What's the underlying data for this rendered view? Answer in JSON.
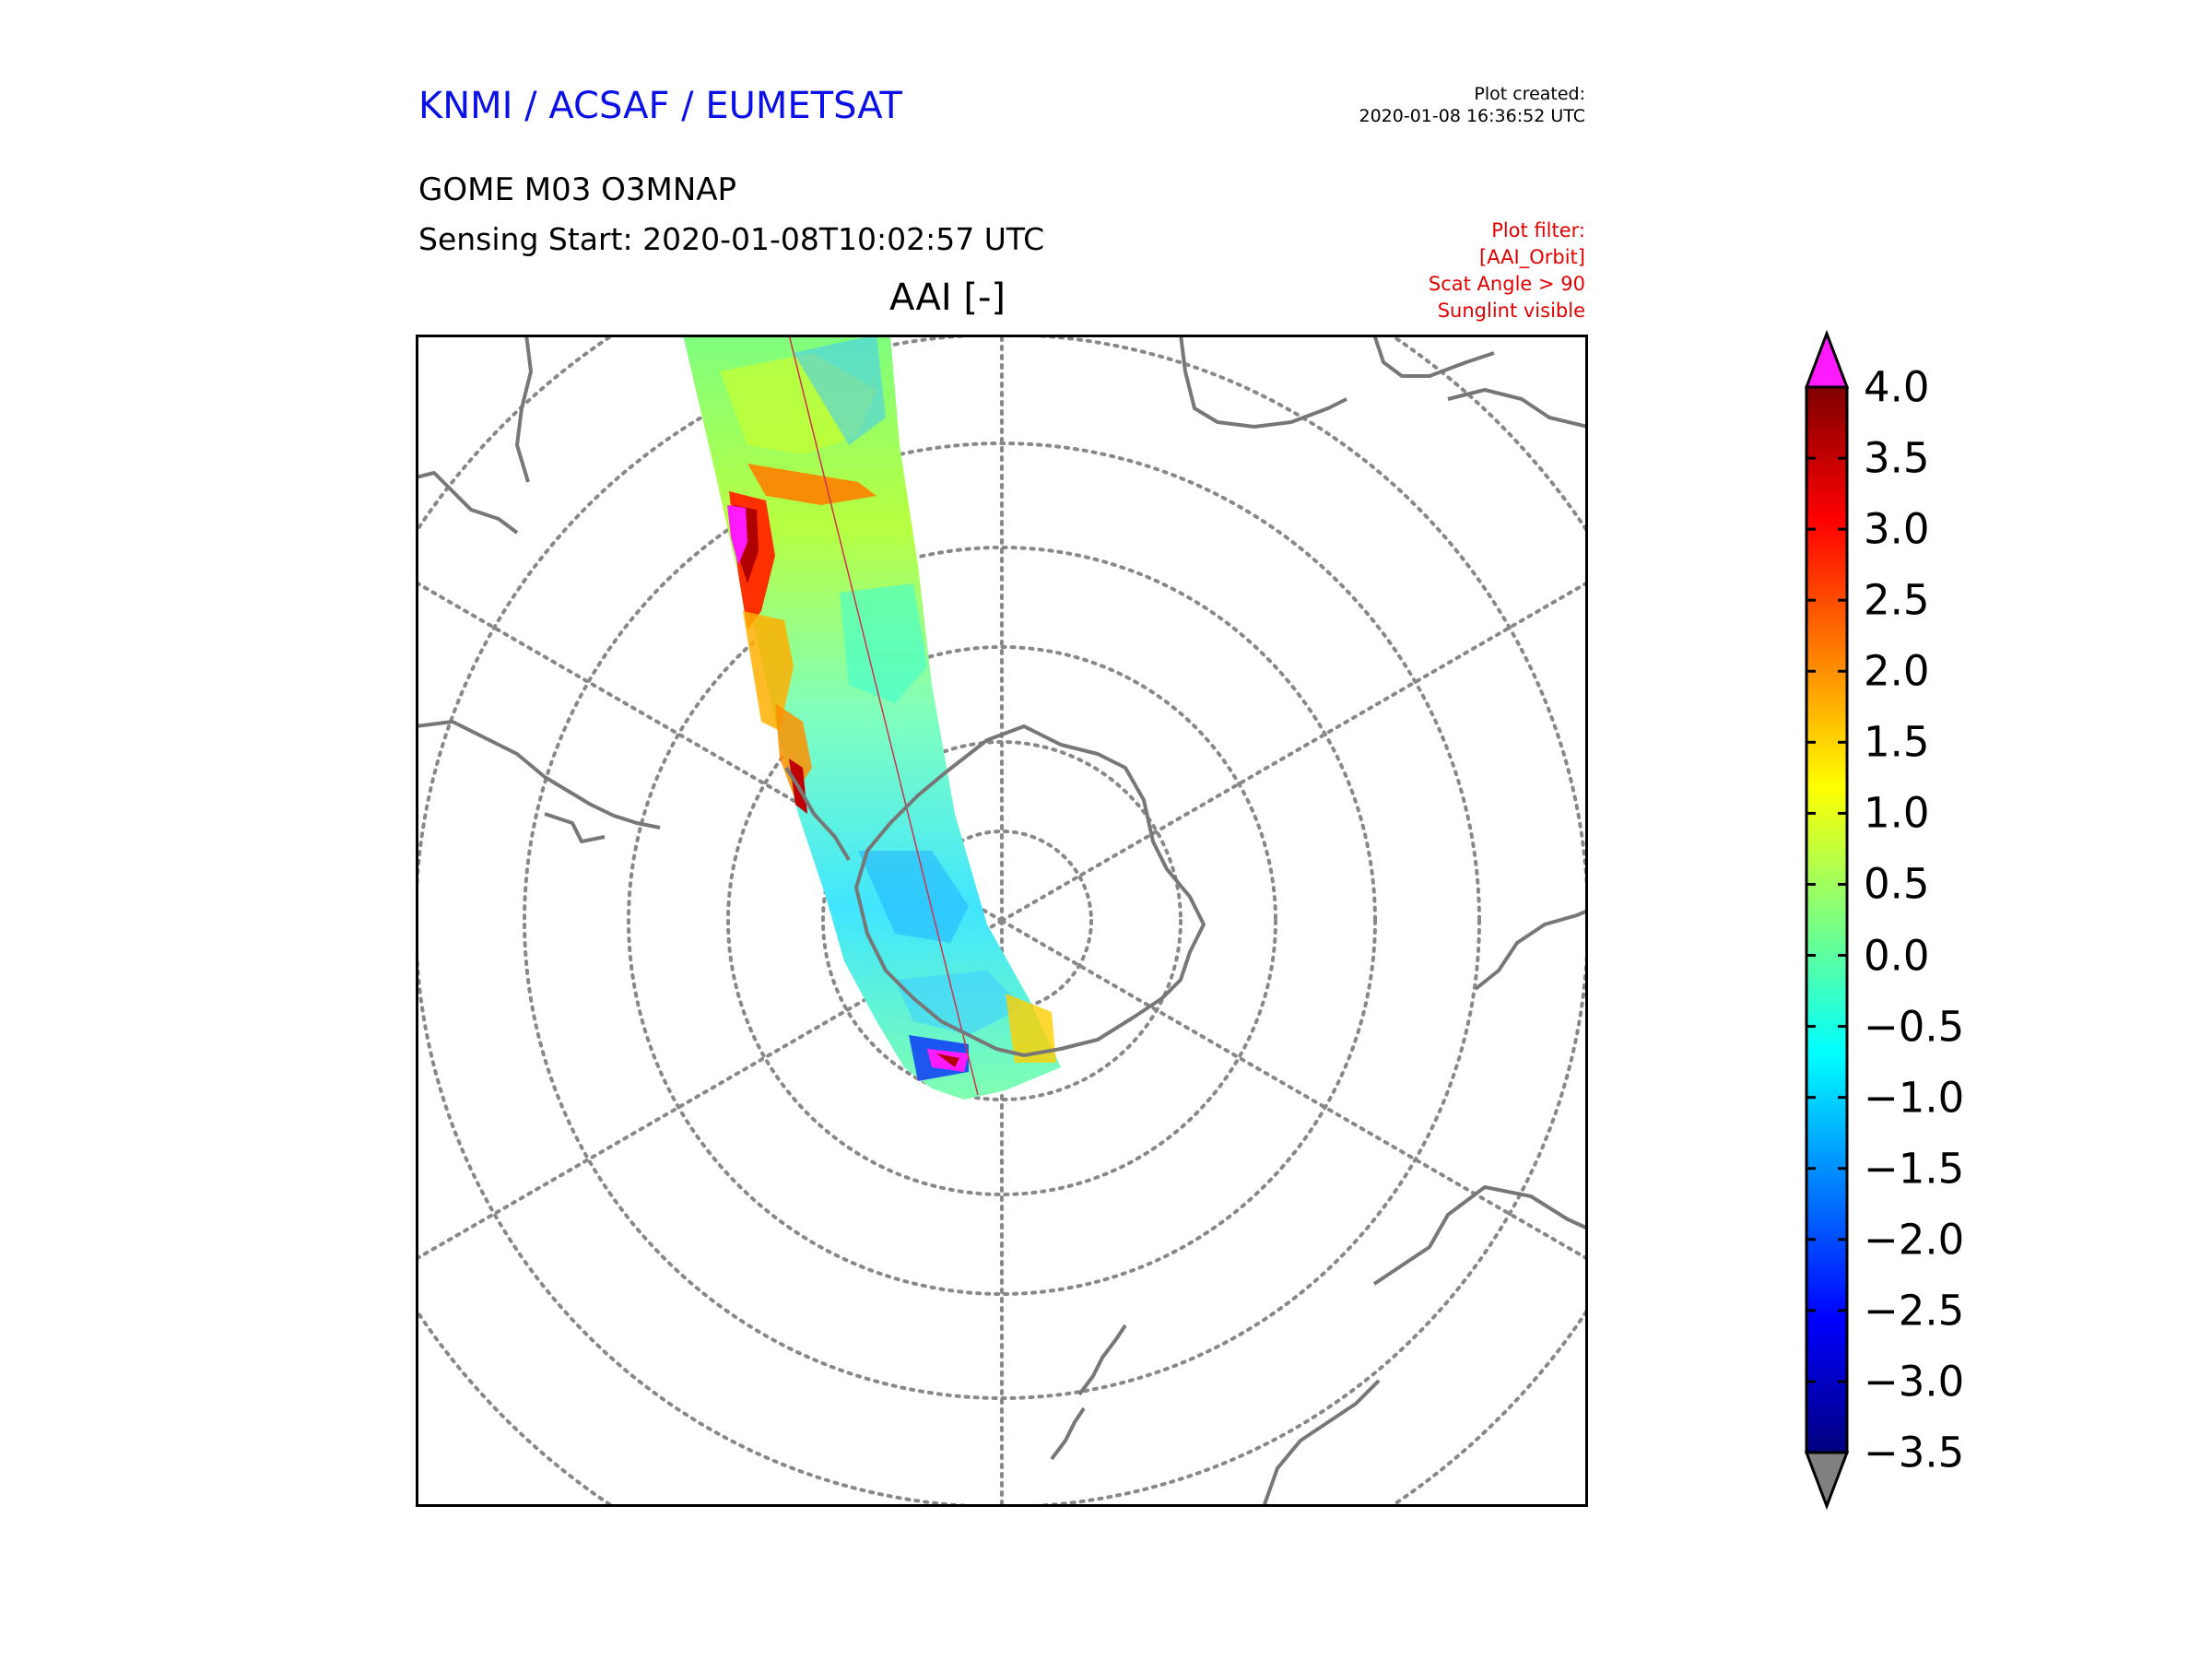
{
  "header": {
    "agency": "KNMI / ACSAF / EUMETSAT",
    "created_label": "Plot created:",
    "created_time": "2020-01-08 16:36:52 UTC",
    "product": "GOME M03 O3MNAP",
    "sensing": "Sensing Start: 2020-01-08T10:02:57 UTC",
    "filter": [
      "Plot filter:",
      "[AAI_Orbit]",
      "Scat Angle > 90",
      "Sunglint visible"
    ]
  },
  "map": {
    "title": "AAI [-]",
    "projection": "south-polar-stereographic",
    "graticule": "dotted",
    "colors": {
      "coast": "#777777",
      "grid": "#888888",
      "frame": "#000000"
    }
  },
  "colorbar": {
    "ticks": [
      "4.0",
      "3.5",
      "3.0",
      "2.5",
      "2.0",
      "1.5",
      "1.0",
      "0.5",
      "0.0",
      "−0.5",
      "−1.0",
      "−1.5",
      "−2.0",
      "−2.5",
      "−3.0",
      "−3.5"
    ],
    "min": -3.5,
    "max": 4.0,
    "over_color": "#ff1aff",
    "under_color": "#808080",
    "stops": [
      "#00007f",
      "#0000ff",
      "#007fff",
      "#00ffff",
      "#7fff7f",
      "#ffff00",
      "#ff7f00",
      "#ff0000",
      "#7f0000"
    ]
  }
}
